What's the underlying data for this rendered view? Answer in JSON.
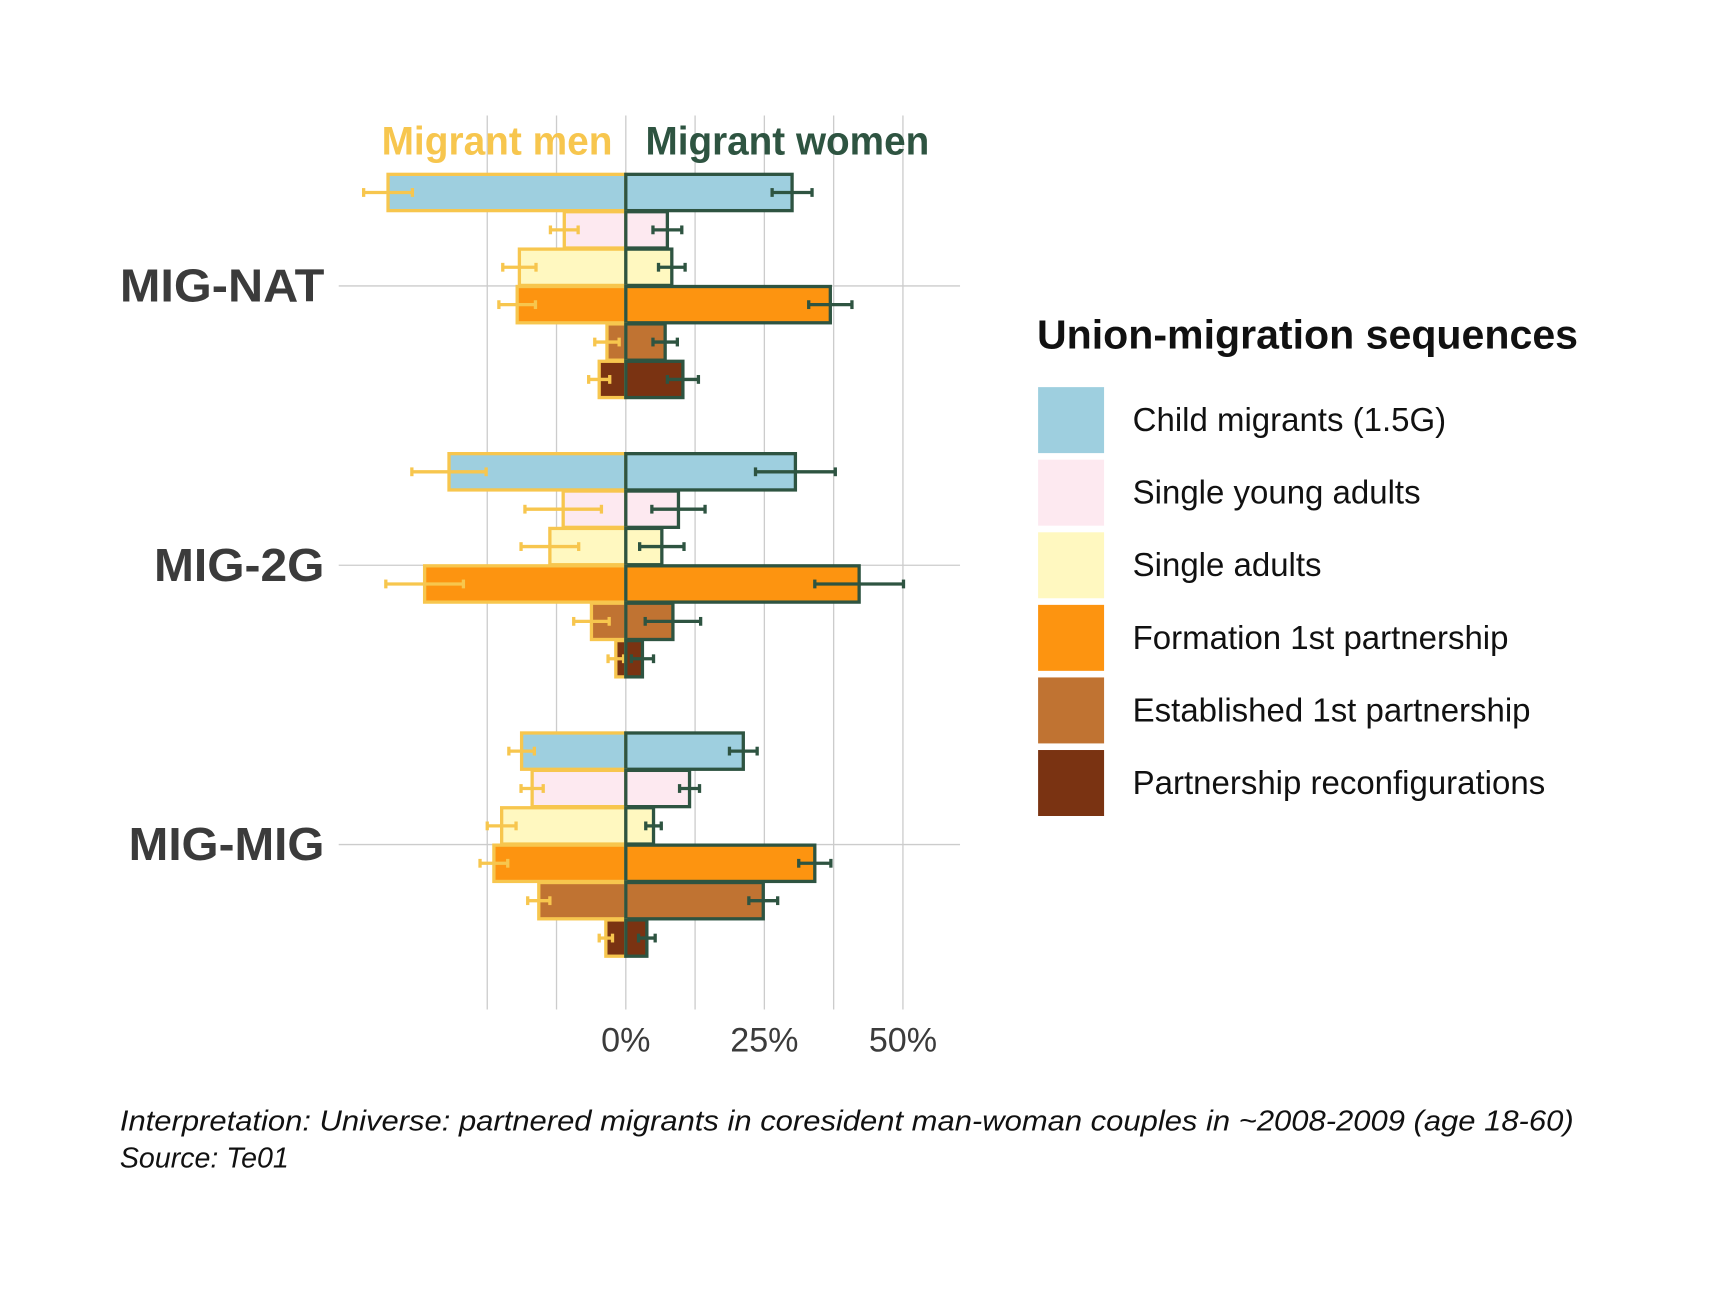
{
  "chart_data": {
    "type": "diverging-bar",
    "categories": [
      "MIG-NAT",
      "MIG-2G",
      "MIG-MIG"
    ],
    "sides": [
      {
        "name": "Migrant men",
        "color": "#f7c64e"
      },
      {
        "name": "Migrant women",
        "color": "#2e5441"
      }
    ],
    "legend_title": "Union-migration sequences",
    "series": [
      {
        "name": "Child migrants (1.5G)",
        "color": "#9ecfdf",
        "values": [
          [
            -42.9,
            -31.9,
            -18.8
          ],
          [
            30.0,
            30.6,
            21.2
          ]
        ],
        "errors": [
          [
            4.4,
            6.7,
            2.3
          ],
          [
            3.6,
            7.2,
            2.5
          ]
        ]
      },
      {
        "name": "Single young adults",
        "color": "#fde9f0",
        "values": [
          [
            -11.1,
            -11.3,
            -16.9
          ],
          [
            7.5,
            9.5,
            11.5
          ]
        ],
        "errors": [
          [
            2.5,
            6.9,
            2.0
          ],
          [
            2.6,
            4.8,
            1.8
          ]
        ]
      },
      {
        "name": "Single adults",
        "color": "#fff8c0",
        "values": [
          [
            -19.2,
            -13.7,
            -22.4
          ],
          [
            8.3,
            6.5,
            5.0
          ]
        ],
        "errors": [
          [
            3.0,
            5.2,
            2.6
          ],
          [
            2.4,
            4.0,
            1.4
          ]
        ]
      },
      {
        "name": "Formation 1st partnership",
        "color": "#fd9410",
        "values": [
          [
            -19.6,
            -36.3,
            -23.8
          ],
          [
            36.9,
            42.1,
            34.1
          ]
        ],
        "errors": [
          [
            3.3,
            7.0,
            2.5
          ],
          [
            3.9,
            8.0,
            2.9
          ]
        ]
      },
      {
        "name": "Established 1st partnership",
        "color": "#c07332",
        "values": [
          [
            -3.4,
            -6.2,
            -15.7
          ],
          [
            7.1,
            8.5,
            24.8
          ]
        ],
        "errors": [
          [
            2.2,
            3.2,
            2.0
          ],
          [
            2.2,
            5.0,
            2.6
          ]
        ]
      },
      {
        "name": "Partnership reconfigurations",
        "color": "#7a3312",
        "values": [
          [
            -4.8,
            -1.8,
            -3.6
          ],
          [
            10.3,
            3.0,
            3.8
          ]
        ],
        "errors": [
          [
            1.9,
            1.4,
            1.2
          ],
          [
            2.8,
            2.0,
            1.5
          ]
        ]
      }
    ],
    "xlim": [
      -51.8,
      60.3
    ],
    "xticks": [
      {
        "value": 0,
        "label": "0%"
      },
      {
        "value": 25,
        "label": "25%"
      },
      {
        "value": 50,
        "label": "50%"
      }
    ],
    "xgrid": [
      -25,
      -12.5,
      0,
      12.5,
      25,
      37.5,
      50
    ],
    "grid": true,
    "caption": [
      "Interpretation: Universe: partnered migrants in coresident man-woman couples in ~2008-2009 (age 18-60)",
      "Source: Te01"
    ]
  }
}
